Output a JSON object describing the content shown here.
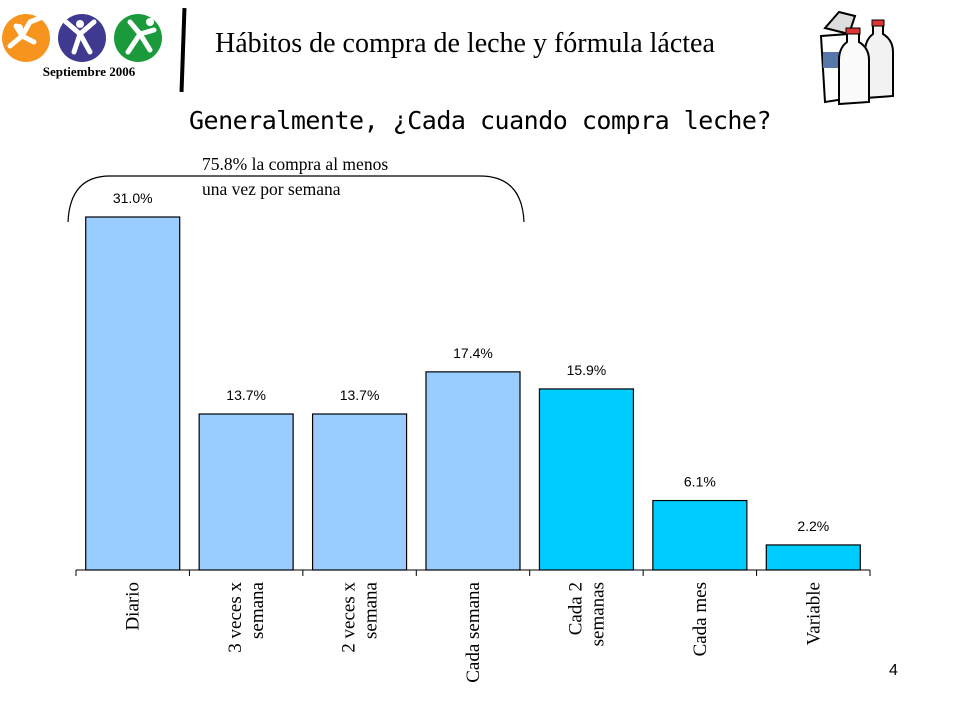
{
  "header": {
    "date": "Septiembre 2006",
    "title": "Hábitos de compra de leche y fórmula láctea"
  },
  "annotation": {
    "line1": "75.8% la compra al menos",
    "line2": "una vez por semana"
  },
  "page_number": "4",
  "icons": [
    "logo-figures-icon",
    "milk-carton-bottles-icon"
  ],
  "colors": {
    "weekly_bar": "#99ccff",
    "less_frequent_bar": "#00ccff",
    "logo_orange": "#f7941d",
    "logo_purple": "#3f3a8f",
    "logo_green": "#1a9a3a"
  },
  "chart_data": {
    "type": "bar",
    "title": "Generalmente, ¿Cada cuando compra leche?",
    "categories": [
      "Diario",
      "3 veces x semana",
      "2 veces x semana",
      "Cada semana",
      "Cada 2 semanas",
      "Cada mes",
      "Variable"
    ],
    "category_lines": [
      [
        "Diario"
      ],
      [
        "3 veces x",
        "semana"
      ],
      [
        "2 veces x",
        "semana"
      ],
      [
        "Cada semana"
      ],
      [
        "Cada 2",
        "semanas"
      ],
      [
        "Cada mes"
      ],
      [
        "Variable"
      ]
    ],
    "values": [
      31.0,
      13.7,
      13.7,
      17.4,
      15.9,
      6.1,
      2.2
    ],
    "value_labels": [
      "31.0%",
      "13.7%",
      "13.7%",
      "17.4%",
      "15.9%",
      "6.1%",
      "2.2%"
    ],
    "bar_colors": [
      "#99ccff",
      "#99ccff",
      "#99ccff",
      "#99ccff",
      "#00ccff",
      "#00ccff",
      "#00ccff"
    ],
    "unit": "%",
    "ylim": [
      0,
      31.0
    ],
    "grid": false,
    "legend": "none"
  }
}
